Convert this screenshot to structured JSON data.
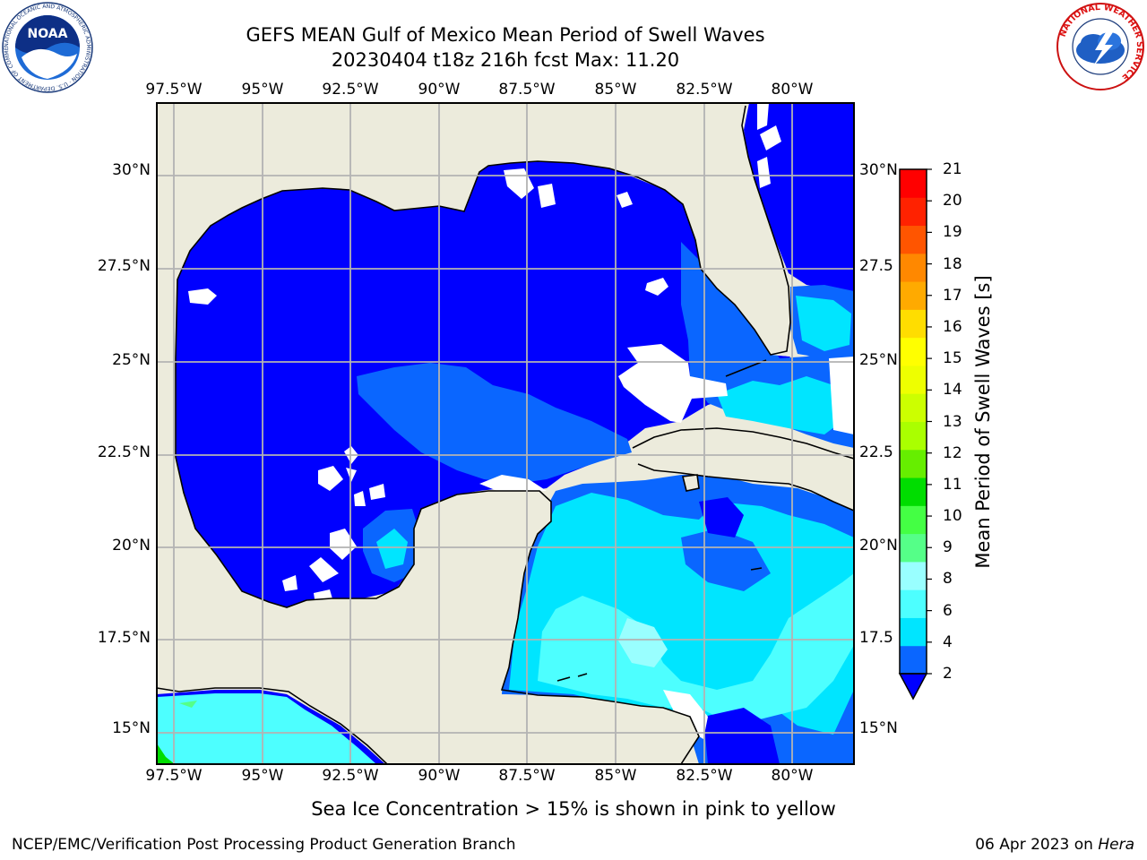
{
  "header": {
    "title_line1": "GEFS MEAN Gulf of Mexico Mean Period of Swell Waves",
    "title_line2": "20230404 t18z 216h fcst   Max: 11.20"
  },
  "logos": {
    "noaa_text": "NOAA",
    "noaa_ring": "NATIONAL OCEANIC AND ATMOSPHERIC ADMINISTRATION · U.S. DEPARTMENT OF COMMERCE",
    "nws_ring": "NATIONAL WEATHER SERVICE"
  },
  "map": {
    "lon_ticks": [
      "97.5°W",
      "95°W",
      "92.5°W",
      "90°W",
      "87.5°W",
      "85°W",
      "82.5°W",
      "80°W"
    ],
    "lat_ticks_left": [
      "30°N",
      "27.5°N",
      "25°N",
      "22.5°N",
      "20°N",
      "17.5°N",
      "15°N"
    ],
    "lat_ticks_right": [
      "30°N",
      "27.5",
      "25°N",
      "22.5",
      "20°N",
      "17.5",
      "15°N"
    ],
    "extent": {
      "lon_min": -98.0,
      "lon_max": -79.0,
      "lat_min": 14.0,
      "lat_max": 31.8
    },
    "colors": {
      "land": "#ecebdc",
      "no_data": "#ffffff",
      "grid": "#b3b3b3"
    }
  },
  "colorbar": {
    "label": "Mean Period of Swell Waves [s]",
    "ticks": [
      "21",
      "20",
      "19",
      "18",
      "17",
      "16",
      "15",
      "14",
      "13",
      "12",
      "11",
      "10",
      "9",
      "8",
      "6",
      "4",
      "2"
    ],
    "colors_bottom_to_top": [
      "#0a66ff",
      "#00e5ff",
      "#4dffff",
      "#99ffff",
      "#55ff88",
      "#44ff44",
      "#00dd00",
      "#66ee00",
      "#aaff00",
      "#ccff00",
      "#eeff00",
      "#ffff00",
      "#ffdd00",
      "#ffaa00",
      "#ff8800",
      "#ff5500",
      "#ff2200",
      "#ff0000"
    ],
    "under_color": "#0000ff"
  },
  "footer": {
    "subtitle": "Sea Ice Concentration > 15% is shown in pink to yellow",
    "credit": "NCEP/EMC/Verification Post Processing Product Generation Branch",
    "date": "06 Apr 2023 on",
    "machine": "Hera"
  }
}
